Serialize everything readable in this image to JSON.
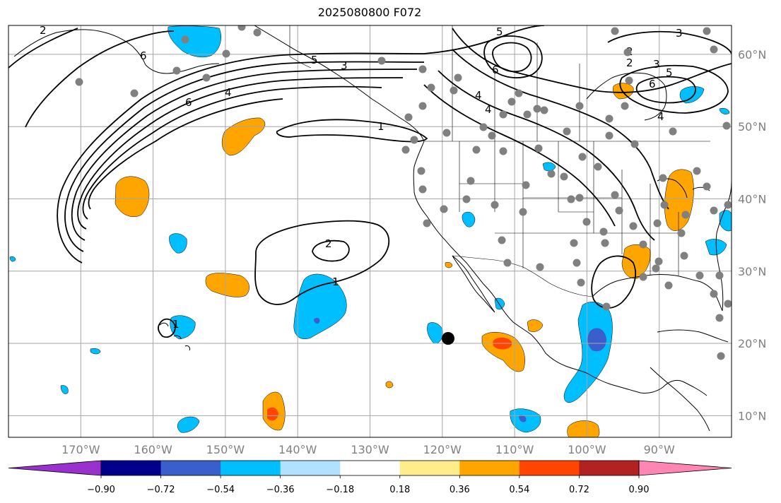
{
  "title": "2025080800 F072",
  "map": {
    "projection": "PlateCarree",
    "lon_range": [
      -180,
      -80
    ],
    "lat_range": [
      7,
      64
    ],
    "gridlines": true,
    "lon_ticks": [
      "170°W",
      "160°W",
      "150°W",
      "140°W",
      "130°W",
      "120°W",
      "110°W",
      "100°W",
      "90°W"
    ],
    "lat_ticks": [
      "10°N",
      "20°N",
      "30°N",
      "40°N",
      "50°N",
      "60°N"
    ],
    "colors": {
      "land_outline": "#000000",
      "grid": "#a6a6a6",
      "station": "#808080",
      "marker": "#000000"
    }
  },
  "colorbar": {
    "labels": [
      "−0.90",
      "−0.72",
      "−0.54",
      "−0.36",
      "−0.18",
      "0.18",
      "0.36",
      "0.54",
      "0.72",
      "0.90"
    ],
    "levels": [
      -0.9,
      -0.72,
      -0.54,
      -0.36,
      -0.18,
      0.18,
      0.36,
      0.54,
      0.72,
      0.9
    ],
    "colors": [
      "#9932cc",
      "#00008b",
      "#3a5fcd",
      "#00bfff",
      "#b0e2ff",
      "#ffffff",
      "#ffec8b",
      "#ffa500",
      "#ff4500",
      "#b22222",
      "#ff86b3"
    ],
    "extend": "both"
  },
  "contours": {
    "labels": [
      "1",
      "1",
      "1",
      "2",
      "2",
      "2",
      "3",
      "3",
      "3",
      "4",
      "4",
      "4",
      "4",
      "5",
      "5",
      "5",
      "6",
      "6",
      "6",
      "6",
      "2"
    ]
  }
}
